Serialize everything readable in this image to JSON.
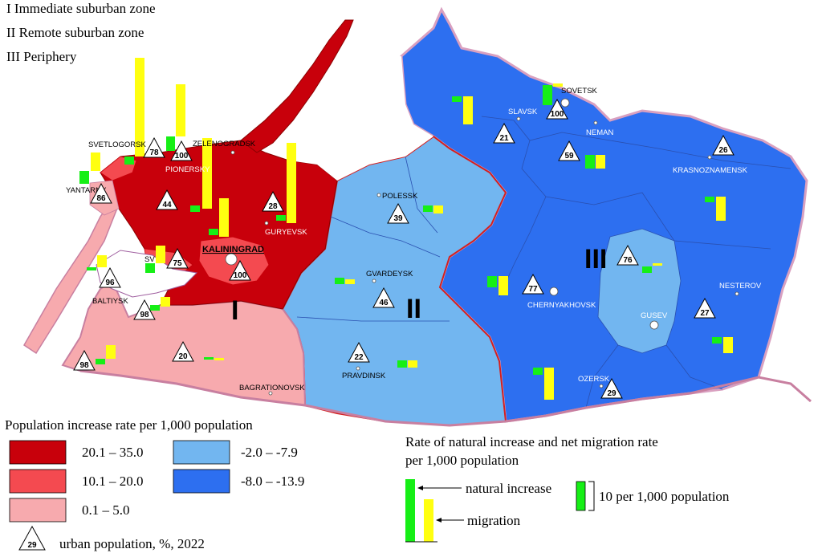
{
  "zones": [
    {
      "label": "I   Immediate suburban zone"
    },
    {
      "label": "II  Remote suburban zone"
    },
    {
      "label": "III  Periphery"
    }
  ],
  "colors": {
    "class_1": "#c8000b",
    "class_2": "#f44a50",
    "class_3": "#f7aaae",
    "class_4": "#72b6f0",
    "class_5": "#2d6ff0",
    "border": "#c87fa0",
    "natural": "#16ef16",
    "migration": "#ffff10"
  },
  "cities": {
    "svetlogorsk": "SVETLOGORSK",
    "zelenogradsk": "ZELENOGRADSK",
    "pionersky": "PIONERSKY",
    "yantarny": "YANTARNY",
    "guryevsk": "GURYEVSK",
    "kaliningrad": "KALININGRAD",
    "svetly": "SV",
    "baltiysk": "BALTIYSK",
    "bagrationovsk": "BAGRATIONOVSK",
    "polessk": "POLESSK",
    "gvardeysk": "GVARDEYSK",
    "pravdinsk": "PRAVDINSK",
    "sovetsk": "SOVETSK",
    "slavsk": "SLAVSK",
    "neman": "NEMAN",
    "krasnoznamensk": "KRASNOZNAMENSK",
    "chernyakhovsk": "CHERNYAKHOVSK",
    "gusev": "GUSEV",
    "nesterov": "NESTEROV",
    "ozersk": "OZERSK"
  },
  "urban_pct": {
    "svetlogorsk": "78",
    "pionersky": "100",
    "yantarny": "86",
    "zelenogradsk_area": "44",
    "guryevsk": "28",
    "svetly": "75",
    "kaliningrad": "100",
    "baltiysk_n": "96",
    "baltiysk": "98",
    "mamonovo": "98",
    "bagrationovsk": "20",
    "polessk": "39",
    "gvardeysk": "46",
    "pravdinsk": "22",
    "sovetsk": "100",
    "slavsk": "21",
    "neman": "59",
    "krasnoznamensk": "26",
    "chernyakhovsk": "77",
    "gusev": "76",
    "nesterov": "27",
    "ozersk": "29"
  },
  "roman": {
    "I": "I",
    "II": "II",
    "III": "III"
  },
  "legend": {
    "title": "Population increase rate per 1,000 population",
    "classes": [
      "20.1 – 35.0",
      "10.1 – 20.0",
      "0.1 –  5.0",
      "-2.0 – -7.9",
      "-8.0 – -13.9"
    ],
    "triangle_example": "29",
    "triangle_label": "urban population, %, 2022",
    "bars_title_1": "Rate of natural increase and net migration rate",
    "bars_title_2": "per 1,000 population",
    "natural_label": "natural increase",
    "migration_label": "migration",
    "scale_label": "10 per 1,000 population"
  }
}
